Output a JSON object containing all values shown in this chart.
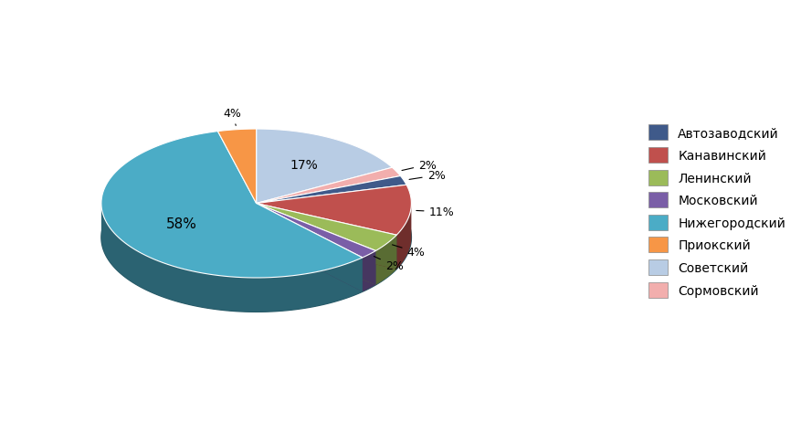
{
  "labels": [
    "Автозаводский",
    "Канавинский",
    "Ленинский",
    "Московский",
    "Нижегородский",
    "Приокский",
    "Советский",
    "Сормовский"
  ],
  "colors": [
    "#3F5A8A",
    "#C0504D",
    "#9BBB59",
    "#7A5EA7",
    "#4BACC6",
    "#F79646",
    "#B8CCE4",
    "#F2AEAD"
  ],
  "values": [
    2,
    11,
    4,
    2,
    58,
    4,
    17,
    2
  ],
  "plot_order": [
    6,
    7,
    0,
    1,
    2,
    3,
    4,
    5
  ],
  "background_color": "#FFFFFF",
  "startangle": 90,
  "depth3d": 0.22,
  "yscale": 0.48,
  "legend_fontsize": 10,
  "pct_fontsize": 9
}
